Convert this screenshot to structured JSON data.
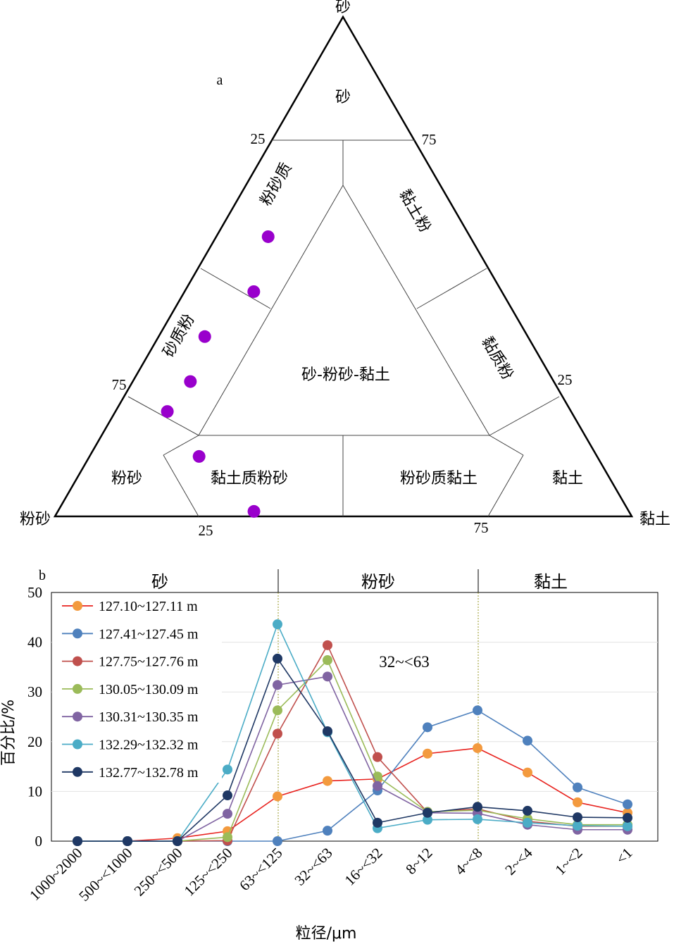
{
  "chart_data": [
    {
      "type": "ternary",
      "panel_label": "a",
      "vertices": {
        "top": "砂",
        "left": "粉砂",
        "right": "黏土"
      },
      "tick_labels": {
        "left_upper": "25",
        "left_lower": "75",
        "right_upper": "75",
        "right_lower": "25",
        "bottom_left": "25",
        "bottom_right": "75"
      },
      "field_labels": {
        "sand": "砂",
        "silty_sand": "粉砂质",
        "clayey_sand": "黏土粉",
        "sandy_silt": "砂质粉",
        "clayey_silt": "黏质粉",
        "center": "砂-粉砂-黏土",
        "silt": "粉砂",
        "clayey_silty": "黏土质粉砂",
        "silty_clay": "粉砂质黏土",
        "clay": "黏土"
      },
      "point_color": "#9900cc",
      "points": [
        {
          "sand": 56,
          "silt": 35,
          "clay": 9
        },
        {
          "sand": 45,
          "silt": 43,
          "clay": 12
        },
        {
          "sand": 36,
          "silt": 56,
          "clay": 8
        },
        {
          "sand": 27,
          "silt": 63,
          "clay": 10
        },
        {
          "sand": 21,
          "silt": 70,
          "clay": 9
        },
        {
          "sand": 12,
          "silt": 69,
          "clay": 19
        },
        {
          "sand": 1,
          "silt": 65,
          "clay": 34
        }
      ]
    },
    {
      "type": "line",
      "panel_label": "b",
      "ylabel": "百分比/%",
      "xlabel": "粒径/μm",
      "ylim": [
        0,
        50
      ],
      "yticks": [
        "0",
        "10",
        "20",
        "30",
        "40",
        "50"
      ],
      "categories": [
        "1000~2000",
        "500~<1000",
        "250~<500",
        "125~<250",
        "63~<125",
        "32~<63",
        "16~<32",
        "8~12",
        "4~<8",
        "2~<4",
        "1~<2",
        "<1"
      ],
      "zones": [
        "砂",
        "粉砂",
        "黏土"
      ],
      "annotation": "32~<63",
      "legend_position": "top-left",
      "series": [
        {
          "name": "127.10~127.11 m",
          "line_color": "#e8231f",
          "marker_color": "#f39a3e",
          "values": [
            0,
            0,
            0.6,
            2,
            9,
            12.1,
            12.5,
            17.6,
            18.7,
            13.8,
            7.8,
            5.7
          ]
        },
        {
          "name": "127.41~127.45 m",
          "line_color": "#4f81bd",
          "marker_color": "#4f81bd",
          "values": [
            0,
            0,
            0,
            0,
            0,
            2.1,
            10.2,
            22.9,
            26.3,
            20.2,
            10.8,
            7.4
          ]
        },
        {
          "name": "127.75~127.76 m",
          "line_color": "#c0504d",
          "marker_color": "#c0504d",
          "values": [
            0,
            0,
            0,
            0.1,
            21.6,
            39.4,
            16.9,
            5.8,
            6.5,
            4,
            3,
            3
          ]
        },
        {
          "name": "130.05~130.09 m",
          "line_color": "#9bbb59",
          "marker_color": "#9bbb59",
          "values": [
            0,
            0,
            0,
            0.8,
            26.3,
            36.4,
            13,
            5.9,
            6.2,
            4.5,
            3.3,
            3.3
          ]
        },
        {
          "name": "130.31~130.35 m",
          "line_color": "#8064a2",
          "marker_color": "#8064a2",
          "values": [
            0,
            0,
            0,
            5.5,
            31.4,
            33.1,
            11.1,
            5.7,
            5.6,
            3.3,
            2.3,
            2.3
          ]
        },
        {
          "name": "132.29~132.32 m",
          "line_color": "#4bacc6",
          "marker_color": "#4bacc6",
          "values": [
            0,
            0,
            0,
            14.4,
            43.6,
            21.9,
            2.6,
            4.3,
            4.4,
            3.7,
            3.1,
            3
          ]
        },
        {
          "name": "132.77~132.78 m",
          "line_color": "#1f3864",
          "marker_color": "#1f3864",
          "values": [
            0,
            0,
            0,
            9.2,
            36.7,
            22.1,
            3.7,
            5.7,
            6.9,
            6.1,
            4.8,
            4.7
          ]
        }
      ]
    }
  ]
}
